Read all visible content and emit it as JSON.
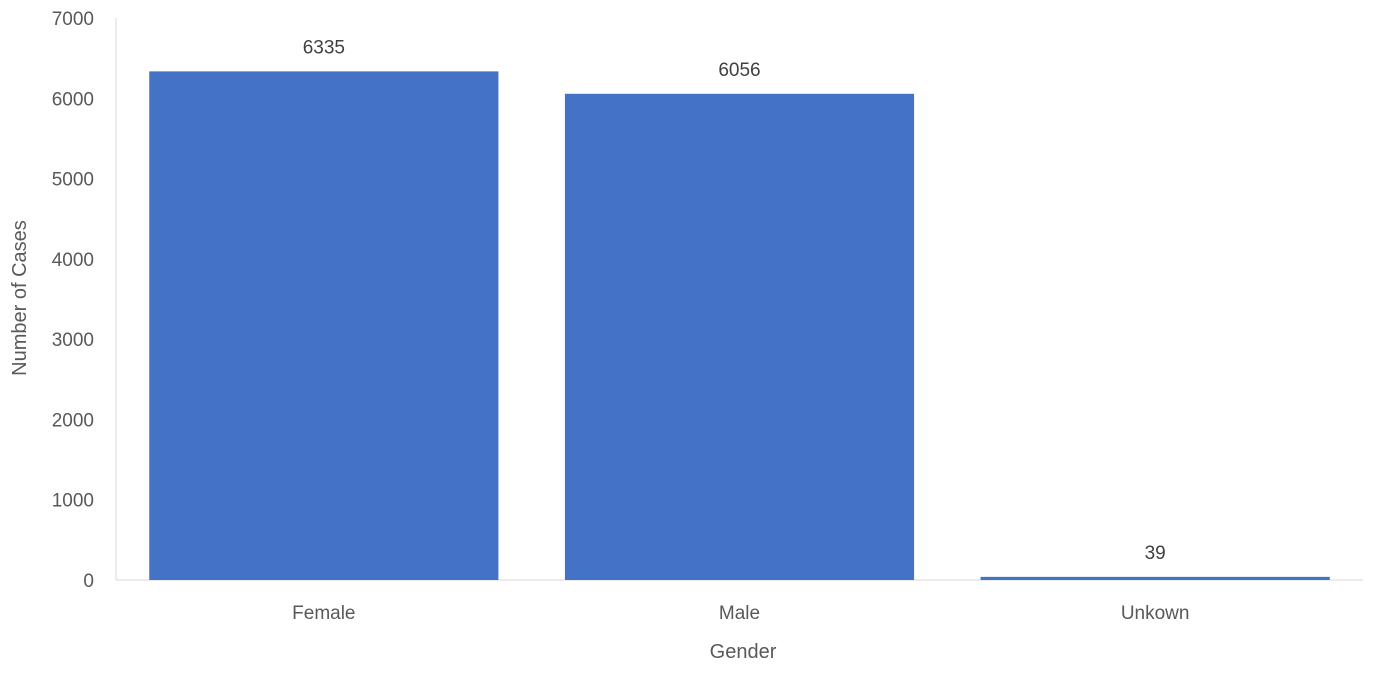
{
  "chart_data": {
    "type": "bar",
    "title": "",
    "xlabel": "Gender",
    "ylabel": "Number of Cases",
    "categories": [
      "Female",
      "Male",
      "Unkown"
    ],
    "values": [
      6335,
      6056,
      39
    ],
    "data_labels": [
      "6335",
      "6056",
      "39"
    ],
    "ylim": [
      0,
      7000
    ],
    "yticks": [
      0,
      1000,
      2000,
      3000,
      4000,
      5000,
      6000,
      7000
    ],
    "grid": false,
    "legend": "none",
    "bar_color": "#4472C4",
    "axis_color": "#D9D9D9",
    "text_color": "#595959"
  }
}
